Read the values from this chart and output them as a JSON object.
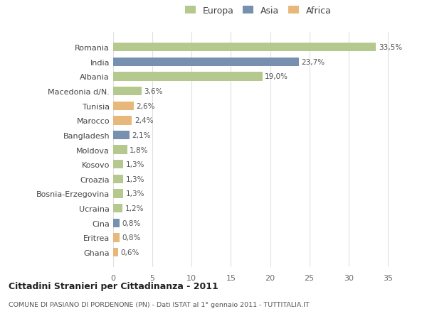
{
  "countries": [
    "Romania",
    "India",
    "Albania",
    "Macedonia d/N.",
    "Tunisia",
    "Marocco",
    "Bangladesh",
    "Moldova",
    "Kosovo",
    "Croazia",
    "Bosnia-Erzegovina",
    "Ucraina",
    "Cina",
    "Eritrea",
    "Ghana"
  ],
  "values": [
    33.5,
    23.7,
    19.0,
    3.6,
    2.6,
    2.4,
    2.1,
    1.8,
    1.3,
    1.3,
    1.3,
    1.2,
    0.8,
    0.8,
    0.6
  ],
  "labels": [
    "33,5%",
    "23,7%",
    "19,0%",
    "3,6%",
    "2,6%",
    "2,4%",
    "2,1%",
    "1,8%",
    "1,3%",
    "1,3%",
    "1,3%",
    "1,2%",
    "0,8%",
    "0,8%",
    "0,6%"
  ],
  "continents": [
    "Europa",
    "Asia",
    "Europa",
    "Europa",
    "Africa",
    "Africa",
    "Asia",
    "Europa",
    "Europa",
    "Europa",
    "Europa",
    "Europa",
    "Asia",
    "Africa",
    "Africa"
  ],
  "colors": {
    "Europa": "#b5c98e",
    "Asia": "#7890b0",
    "Africa": "#e8b87a"
  },
  "title": "Cittadini Stranieri per Cittadinanza - 2011",
  "subtitle": "COMUNE DI PASIANO DI PORDENONE (PN) - Dati ISTAT al 1° gennaio 2011 - TUTTITALIA.IT",
  "xlim": [
    0,
    37
  ],
  "xticks": [
    0,
    5,
    10,
    15,
    20,
    25,
    30,
    35
  ],
  "background_color": "#ffffff",
  "grid_color": "#e0e0e0"
}
